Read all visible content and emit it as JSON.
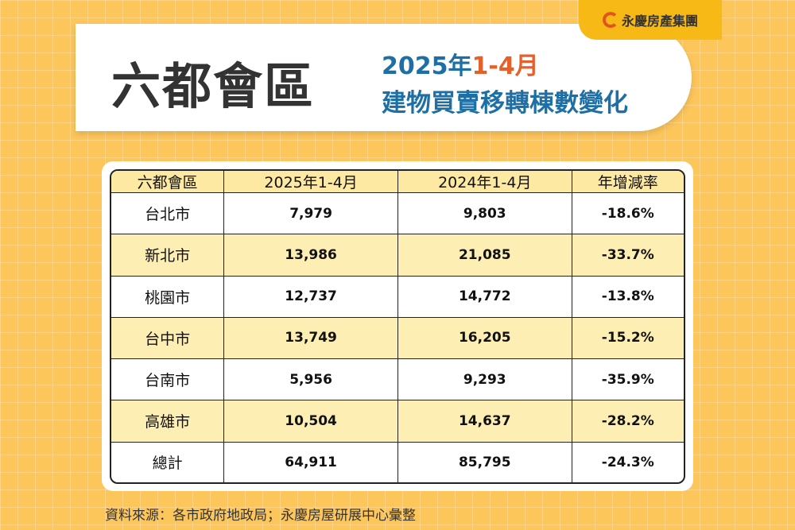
{
  "brand": {
    "logo_text": "永慶房產集團",
    "accent": "#e5602a",
    "title_color": "#1d6fa6"
  },
  "title": {
    "main": "六都會區",
    "year_prefix": "2025年",
    "year_range": "1-4月",
    "subtitle": "建物買賣移轉棟數變化"
  },
  "chart_data": {
    "type": "table",
    "title": "六都會區 2025年1-4月 建物買賣移轉棟數變化",
    "columns": [
      "六都會區",
      "2025年1-4月",
      "2024年1-4月",
      "年增減率"
    ],
    "rows": [
      [
        "台北市",
        "7,979",
        "9,803",
        "-18.6%"
      ],
      [
        "新北市",
        "13,986",
        "21,085",
        "-33.7%"
      ],
      [
        "桃園市",
        "12,737",
        "14,772",
        "-13.8%"
      ],
      [
        "台中市",
        "13,749",
        "16,205",
        "-15.2%"
      ],
      [
        "台南市",
        "5,956",
        "9,293",
        "-35.9%"
      ],
      [
        "高雄市",
        "10,504",
        "14,637",
        "-28.2%"
      ],
      [
        "總計",
        "64,911",
        "85,795",
        "-24.3%"
      ]
    ]
  },
  "footer": {
    "source": "資料來源：各市政府地政局；永慶房屋研展中心彙整"
  }
}
